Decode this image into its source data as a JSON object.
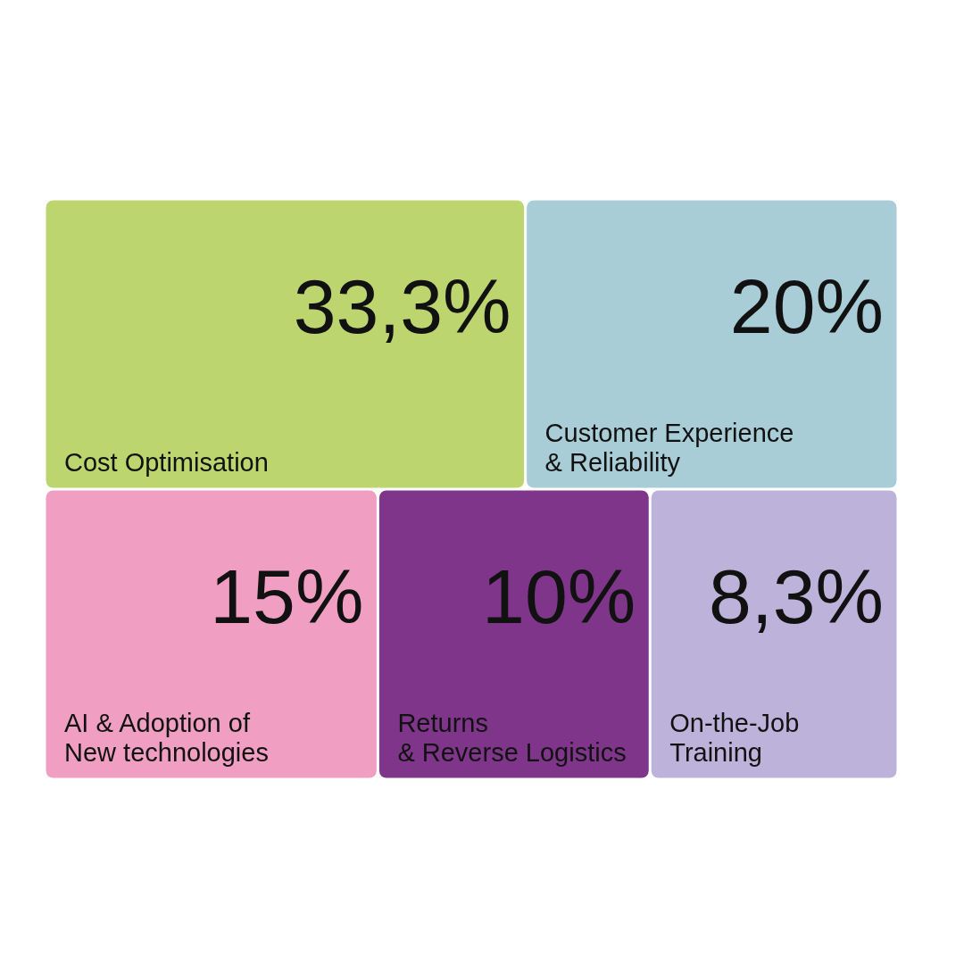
{
  "chart_data": {
    "type": "other",
    "categories": [
      "Cost Optimisation",
      "Customer Experience\n& Reliability",
      "AI & Adoption of\nNew technologies",
      "Returns\n& Reverse Logistics",
      "On-the-Job\nTraining"
    ],
    "values": [
      33.3,
      20,
      15,
      10,
      8.3
    ],
    "value_labels": [
      "33,3%",
      "20%",
      "15%",
      "10%",
      "8,3%"
    ],
    "colors": [
      "#bcd56e",
      "#a8cdd6",
      "#f09fc3",
      "#7f368a",
      "#bdb3da"
    ]
  }
}
